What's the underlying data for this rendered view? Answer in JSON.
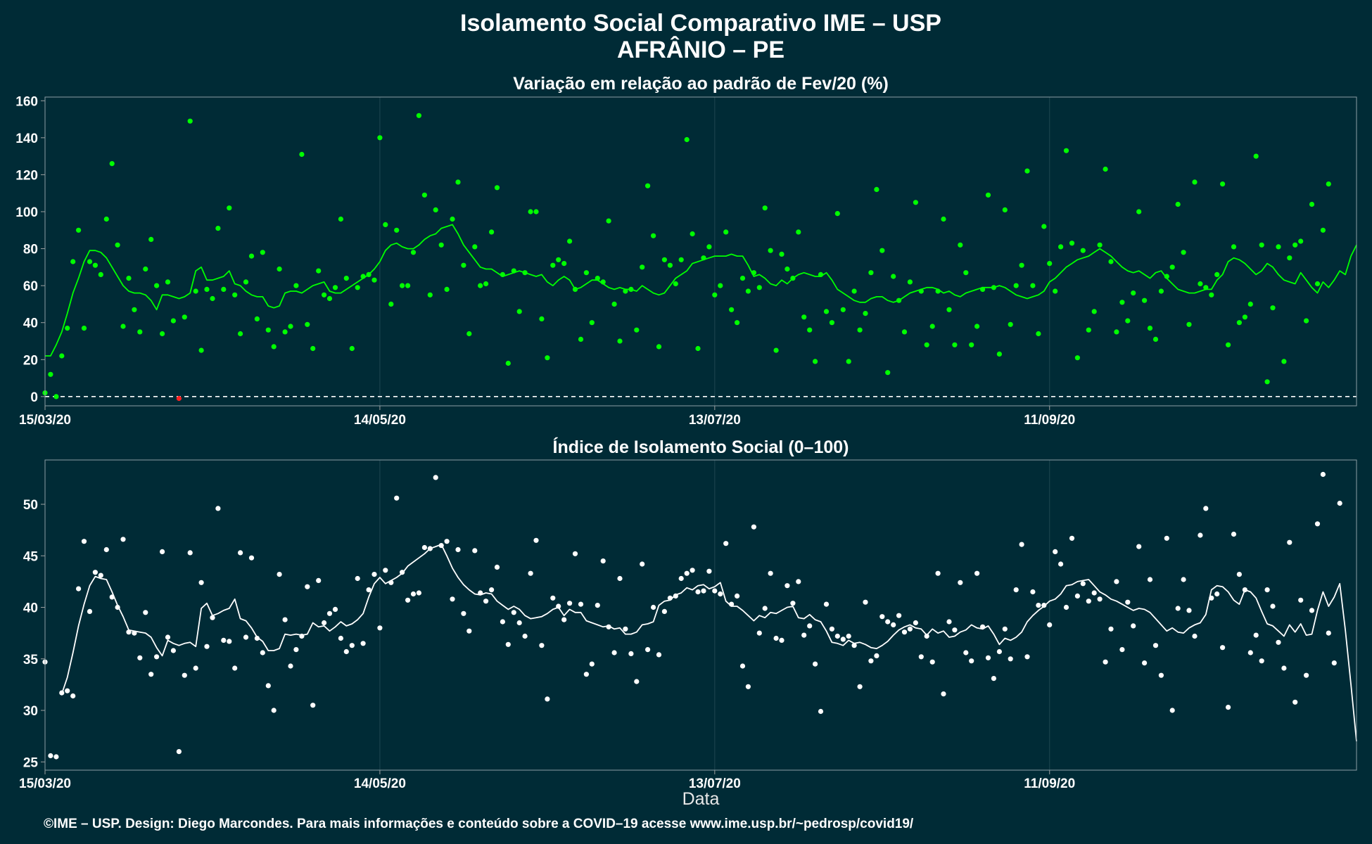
{
  "title_line1": "Isolamento Social Comparativo IME – USP",
  "title_line2": "AFRÂNIO – PE",
  "caption": "©IME – USP. Design: Diego Marcondes. Para mais informações e conteúdo sobre a COVID–19 acesse www.ime.usp.br/~pedrosp/covid19/",
  "chart_data": [
    {
      "type": "scatter",
      "title": "Variação em relação ao padrão de Fev/20 (%)",
      "xlabel": "",
      "ylabel": "",
      "x_start": "15/03/20",
      "x_tick_labels": [
        "15/03/20",
        "14/05/20",
        "13/07/20",
        "11/09/20"
      ],
      "x_tick_days": [
        0,
        60,
        120,
        180
      ],
      "n_days": 236,
      "ylim": [
        -5,
        162
      ],
      "y_ticks": [
        0,
        20,
        40,
        60,
        80,
        100,
        120,
        140,
        160
      ],
      "reference_line": 0,
      "grid": true,
      "colors": {
        "points": "#00ff00",
        "line": "#00ff00",
        "negative": "#ff2020"
      },
      "series": [
        {
          "values": [
            2,
            12,
            0,
            22,
            37,
            73,
            90,
            37,
            73,
            71,
            66,
            96,
            126,
            82,
            38,
            64,
            47,
            35,
            69,
            85,
            60,
            34,
            62,
            41,
            -1,
            43,
            149,
            57,
            25,
            58,
            53,
            91,
            58,
            102,
            55,
            34,
            62,
            76,
            42,
            78,
            36,
            27,
            69,
            35,
            38,
            60,
            131,
            39,
            26,
            68,
            55,
            53,
            59,
            96,
            64,
            26,
            59,
            65,
            66,
            63,
            140,
            93,
            50,
            90,
            60,
            60,
            78,
            152,
            109,
            55,
            101,
            82,
            58,
            96,
            116,
            71,
            34,
            81,
            60,
            61,
            89,
            113,
            66,
            18,
            68,
            46,
            67,
            100,
            100,
            42,
            21,
            71,
            74,
            72,
            84,
            58,
            31,
            67,
            40,
            64,
            62,
            95,
            50,
            30,
            57,
            58,
            36,
            70,
            114,
            87,
            27,
            74,
            71,
            61,
            74,
            139,
            88,
            26,
            75,
            81,
            55,
            60,
            89,
            47,
            40,
            64,
            57,
            67,
            59,
            102,
            79,
            25,
            77,
            69,
            64,
            89,
            43,
            36,
            19,
            66,
            46,
            40,
            99,
            47,
            19,
            57,
            36,
            45,
            67,
            112,
            79,
            13,
            65,
            52,
            35,
            62,
            105,
            57,
            28,
            38,
            57,
            96,
            47,
            28,
            82,
            67,
            28,
            38,
            58,
            109,
            59,
            23,
            101,
            39,
            60,
            71,
            122,
            60,
            34,
            92,
            72,
            57,
            81,
            133,
            83,
            21,
            79,
            36,
            46,
            82,
            123,
            73,
            35,
            51,
            41,
            56,
            100,
            52,
            37,
            31,
            57,
            65,
            70,
            104,
            78,
            39,
            116,
            61,
            59,
            55,
            66,
            115,
            28,
            81,
            40,
            43,
            50,
            130,
            82,
            8,
            48,
            81,
            19,
            75,
            82,
            84,
            41,
            104,
            61,
            90,
            115
          ]
        },
        {
          "values": [
            22,
            22,
            28,
            35,
            45,
            56,
            64,
            73,
            79,
            79,
            78,
            75,
            70,
            65,
            60,
            57,
            56,
            56,
            55,
            52,
            47,
            55,
            55,
            54,
            53,
            54,
            56,
            68,
            70,
            63,
            63,
            64,
            65,
            68,
            61,
            60,
            57,
            55,
            54,
            54,
            49,
            48,
            49,
            56,
            57,
            57,
            56,
            58,
            60,
            61,
            62,
            57,
            56,
            56,
            58,
            60,
            62,
            64,
            66,
            69,
            73,
            79,
            82,
            83,
            81,
            80,
            80,
            82,
            85,
            87,
            88,
            91,
            92,
            93,
            88,
            82,
            78,
            74,
            70,
            69,
            69,
            67,
            65,
            66,
            67,
            68,
            67,
            66,
            65,
            66,
            62,
            60,
            63,
            65,
            63,
            58,
            59,
            61,
            63,
            63,
            61,
            59,
            58,
            59,
            58,
            58,
            57,
            60,
            58,
            56,
            55,
            56,
            60,
            64,
            66,
            68,
            72,
            73,
            74,
            75,
            76,
            76,
            76,
            77,
            76,
            76,
            71,
            65,
            66,
            64,
            61,
            60,
            63,
            61,
            64,
            66,
            67,
            66,
            65,
            65,
            67,
            63,
            58,
            56,
            54,
            52,
            51,
            51,
            53,
            54,
            54,
            52,
            51,
            52,
            54,
            56,
            57,
            58,
            59,
            59,
            58,
            56,
            57,
            55,
            54,
            56,
            57,
            58,
            59,
            59,
            59,
            60,
            59,
            57,
            55,
            54,
            53,
            54,
            55,
            57,
            62,
            64,
            67,
            70,
            72,
            74,
            75,
            76,
            78,
            80,
            78,
            76,
            73,
            70,
            68,
            67,
            68,
            66,
            64,
            67,
            68,
            64,
            61,
            58,
            57,
            56,
            56,
            57,
            58,
            58,
            63,
            66,
            73,
            75,
            74,
            72,
            69,
            66,
            68,
            72,
            70,
            66,
            63,
            62,
            61,
            67,
            63,
            59,
            56,
            62,
            59,
            63,
            68,
            66,
            76,
            82
          ]
        }
      ]
    },
    {
      "type": "scatter",
      "title": "Índice de Isolamento Social (0–100)",
      "xlabel": "Data",
      "ylabel": "",
      "x_start": "15/03/20",
      "x_tick_labels": [
        "15/03/20",
        "14/05/20",
        "13/07/20",
        "11/09/20"
      ],
      "x_tick_days": [
        0,
        60,
        120,
        180
      ],
      "n_days": 236,
      "ylim": [
        24.2,
        54.3
      ],
      "y_ticks": [
        25,
        30,
        35,
        40,
        45,
        50
      ],
      "grid": true,
      "colors": {
        "points": "#ffffff",
        "line": "#ffffff"
      },
      "series": [
        {
          "values": [
            34.7,
            25.6,
            25.5,
            31.7,
            31.9,
            31.4,
            41.8,
            46.4,
            39.6,
            43.4,
            43.1,
            45.6,
            41.0,
            40.0,
            46.6,
            37.6,
            37.5,
            35.1,
            39.5,
            33.5,
            35.2,
            45.4,
            37.1,
            35.8,
            26.0,
            33.4,
            45.3,
            34.1,
            42.4,
            36.2,
            39.0,
            49.6,
            36.8,
            36.7,
            34.1,
            45.3,
            37.1,
            44.8,
            37.0,
            35.6,
            32.4,
            30.0,
            43.2,
            38.8,
            34.3,
            35.9,
            37.2,
            42.0,
            30.5,
            42.6,
            38.5,
            39.4,
            39.8,
            37.0,
            35.7,
            36.3,
            42.8,
            36.5,
            41.7,
            43.2,
            38.0,
            43.6,
            42.4,
            50.6,
            43.4,
            40.7,
            41.3,
            41.4,
            45.8,
            45.7,
            52.6,
            46.0,
            46.4,
            40.8,
            45.6,
            39.4,
            37.7,
            45.5,
            41.4,
            40.6,
            41.7,
            43.9,
            38.6,
            36.4,
            39.5,
            38.5,
            37.2,
            43.3,
            46.5,
            36.3,
            31.1,
            40.9,
            40.1,
            38.8,
            40.4,
            45.2,
            40.3,
            33.5,
            34.5,
            40.2,
            44.5,
            38.1,
            35.6,
            42.8,
            37.9,
            35.5,
            32.8,
            44.2,
            35.9,
            40.0,
            35.4,
            39.6,
            40.9,
            41.1,
            42.8,
            43.3,
            43.6,
            41.5,
            41.6,
            43.5,
            41.6,
            41.3,
            46.2,
            40.3,
            41.1,
            34.3,
            32.3,
            47.8,
            37.5,
            39.9,
            43.3,
            37.0,
            36.8,
            42.1,
            40.4,
            42.5,
            37.3,
            38.2,
            34.5,
            29.9,
            40.3,
            37.9,
            37.2,
            36.9,
            37.2,
            36.3,
            32.3,
            40.5,
            34.8,
            35.3,
            39.1,
            38.6,
            38.3,
            39.2,
            37.6,
            37.9,
            38.5,
            35.2,
            37.2,
            34.7,
            43.3,
            31.6,
            38.6,
            37.8,
            42.4,
            35.6,
            34.8,
            43.3,
            38.1,
            35.1,
            33.1,
            35.7,
            37.9,
            35.0,
            41.7,
            46.1,
            35.2,
            41.5,
            40.2,
            40.2,
            38.3,
            45.4,
            44.2,
            40.0,
            46.7,
            41.1,
            42.3,
            40.6,
            41.4,
            40.8,
            34.7,
            37.9,
            42.5,
            35.9,
            40.5,
            38.2,
            45.9,
            34.6,
            42.7,
            36.3,
            33.4,
            46.7,
            30.0,
            39.9,
            42.7,
            39.7,
            37.2,
            47.0,
            49.6,
            40.9,
            41.3,
            36.1,
            30.3,
            47.1,
            43.2,
            41.7,
            35.6,
            37.3,
            34.8,
            41.7,
            40.1,
            36.6,
            34.1,
            46.3,
            30.8,
            40.7,
            33.4,
            39.7,
            48.1,
            52.9,
            37.5,
            34.6,
            50.1
          ]
        },
        {
          "values": [
            null,
            null,
            null,
            31.6,
            33.2,
            35.6,
            38.2,
            40.3,
            42.1,
            43.0,
            42.8,
            42.7,
            41.5,
            40.2,
            39.1,
            37.8,
            37.7,
            37.6,
            37.5,
            37.1,
            36.1,
            35.3,
            36.8,
            36.5,
            36.3,
            36.5,
            36.6,
            36.2,
            39.9,
            40.4,
            39.2,
            39.4,
            39.7,
            39.9,
            40.8,
            38.9,
            38.7,
            38.0,
            37.1,
            36.7,
            35.8,
            35.8,
            36.0,
            37.4,
            37.3,
            37.4,
            37.3,
            37.4,
            38.5,
            38.1,
            38.2,
            37.7,
            38.1,
            38.6,
            38.2,
            38.4,
            38.8,
            39.4,
            41.0,
            42.3,
            42.9,
            42.3,
            42.6,
            42.9,
            43.3,
            44.0,
            44.4,
            44.8,
            45.2,
            45.7,
            45.9,
            46.1,
            45.0,
            43.8,
            42.9,
            42.2,
            41.7,
            41.3,
            41.2,
            41.4,
            41.3,
            40.6,
            40.2,
            39.8,
            40.1,
            39.8,
            39.2,
            38.9,
            39.0,
            39.1,
            39.4,
            39.8,
            40.0,
            39.2,
            39.8,
            39.5,
            39.5,
            38.7,
            38.5,
            38.3,
            38.1,
            38.2,
            37.9,
            38.0,
            37.4,
            37.4,
            37.6,
            38.3,
            38.4,
            38.6,
            40.2,
            40.6,
            40.7,
            41.2,
            41.4,
            41.9,
            41.7,
            42.1,
            42.2,
            41.8,
            42.0,
            42.4,
            40.6,
            40.1,
            40.1,
            39.7,
            39.2,
            38.7,
            39.2,
            39.0,
            39.5,
            39.4,
            39.7,
            40.0,
            40.1,
            39.0,
            38.9,
            39.3,
            38.8,
            38.6,
            37.7,
            36.6,
            36.5,
            36.3,
            36.8,
            36.5,
            36.6,
            36.4,
            36.1,
            36.0,
            36.3,
            36.7,
            37.3,
            37.8,
            38.1,
            38.3,
            38.0,
            37.9,
            37.3,
            37.9,
            37.5,
            37.7,
            37.1,
            37.2,
            37.6,
            37.8,
            38.3,
            38.0,
            37.9,
            38.2,
            37.4,
            36.4,
            37.0,
            36.8,
            37.1,
            37.6,
            38.6,
            39.2,
            39.7,
            40.1,
            40.6,
            40.8,
            41.3,
            42.1,
            42.2,
            42.5,
            42.6,
            42.7,
            42.1,
            41.5,
            41.2,
            40.8,
            40.6,
            40.3,
            40.0,
            39.7,
            39.9,
            39.8,
            39.5,
            38.9,
            38.3,
            37.7,
            38.0,
            37.6,
            37.5,
            38.0,
            38.3,
            38.5,
            39.3,
            41.7,
            42.1,
            42.0,
            41.5,
            40.7,
            40.3,
            41.7,
            41.5,
            40.9,
            39.6,
            38.4,
            38.2,
            37.7,
            37.2,
            38.3,
            37.6,
            38.4,
            37.3,
            37.4,
            39.7,
            41.5,
            40.1,
            41.0,
            42.3,
            37.8,
            32.5,
            27.0
          ]
        }
      ]
    }
  ]
}
